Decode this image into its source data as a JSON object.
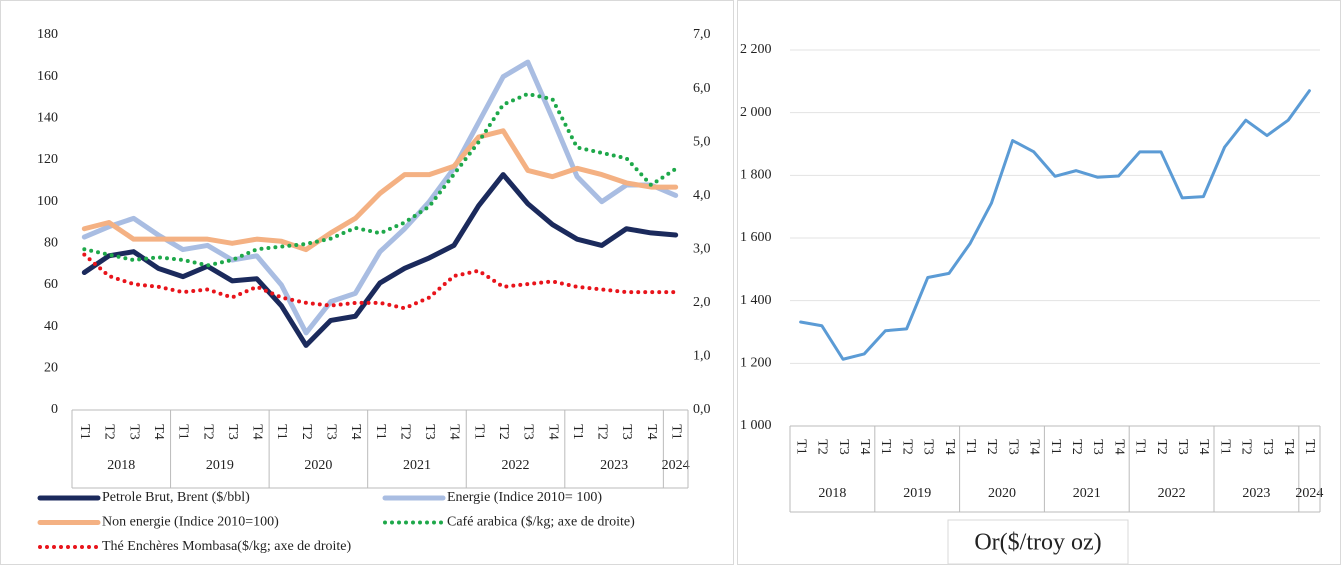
{
  "chart_data": [
    {
      "type": "line",
      "categories": [
        "T1",
        "T2",
        "T3",
        "T4",
        "T1",
        "T2",
        "T3",
        "T4",
        "T1",
        "T2",
        "T3",
        "T4",
        "T1",
        "T2",
        "T3",
        "T4",
        "T1",
        "T2",
        "T3",
        "T4",
        "T1",
        "T2",
        "T3",
        "T4",
        "T1"
      ],
      "groups": [
        "2018",
        null,
        null,
        null,
        "2019",
        null,
        null,
        null,
        "2020",
        null,
        null,
        null,
        "2021",
        null,
        null,
        null,
        "2022",
        null,
        null,
        null,
        "2023",
        null,
        null,
        null,
        "2024"
      ],
      "ylim": [
        0,
        180
      ],
      "yticks": [
        0,
        20,
        40,
        60,
        80,
        100,
        120,
        140,
        160,
        180
      ],
      "y2lim": [
        0,
        7
      ],
      "y2ticks": [
        {
          "value": 0,
          "label": "0,0"
        },
        {
          "value": 1,
          "label": "1,0"
        },
        {
          "value": 2,
          "label": "2,0"
        },
        {
          "value": 3,
          "label": "3,0"
        },
        {
          "value": 4,
          "label": "4,0"
        },
        {
          "value": 5,
          "label": "5,0"
        },
        {
          "value": 6,
          "label": "6,0"
        },
        {
          "value": 7,
          "label": "7,0"
        }
      ],
      "grid": false,
      "legend": "bottom",
      "series": [
        {
          "name": "Petrole Brut, Brent ($/bbl)",
          "color": "#1b2a5c",
          "style": "solid",
          "values": [
            66,
            74,
            76,
            68,
            64,
            69,
            62,
            63,
            50,
            31,
            43,
            45,
            61,
            68,
            73,
            79,
            98,
            113,
            99,
            89,
            82,
            79,
            87,
            85,
            84
          ]
        },
        {
          "name": "Energie (Indice 2010= 100)",
          "color": "#a9bde2",
          "style": "solid",
          "values": [
            83,
            88,
            92,
            84,
            77,
            79,
            72,
            74,
            60,
            37,
            52,
            56,
            76,
            87,
            100,
            116,
            138,
            160,
            167,
            140,
            112,
            100,
            108,
            108,
            103
          ]
        },
        {
          "name": "Non energie (Indice 2010=100)",
          "color": "#f4b183",
          "style": "solid",
          "values": [
            87,
            90,
            82,
            82,
            82,
            82,
            80,
            82,
            81,
            77,
            85,
            92,
            104,
            113,
            113,
            117,
            131,
            134,
            115,
            112,
            116,
            113,
            109,
            107,
            107
          ]
        },
        {
          "name": "Café arabica ($/kg; axe de droite)",
          "color": "#1ea84a",
          "style": "dotted",
          "axis": "y2",
          "values": [
            3.0,
            2.9,
            2.8,
            2.85,
            2.8,
            2.7,
            2.8,
            3.0,
            3.05,
            3.1,
            3.2,
            3.4,
            3.3,
            3.5,
            3.8,
            4.4,
            5.0,
            5.7,
            5.9,
            5.8,
            4.9,
            4.8,
            4.7,
            4.2,
            4.5
          ]
        },
        {
          "name": "Thé Enchères Mombasa($/kg; axe de droite)",
          "color": "#e8141b",
          "style": "dotted",
          "axis": "y2",
          "values": [
            2.9,
            2.5,
            2.35,
            2.3,
            2.2,
            2.25,
            2.1,
            2.3,
            2.1,
            2.0,
            1.95,
            2.0,
            2.0,
            1.9,
            2.1,
            2.5,
            2.6,
            2.3,
            2.35,
            2.4,
            2.3,
            2.25,
            2.2,
            2.2,
            2.2
          ]
        }
      ]
    },
    {
      "type": "line",
      "title": "Or($/troy oz)",
      "categories": [
        "T1",
        "T2",
        "T3",
        "T4",
        "T1",
        "T2",
        "T3",
        "T4",
        "T1",
        "T2",
        "T3",
        "T4",
        "T1",
        "T2",
        "T3",
        "T4",
        "T1",
        "T2",
        "T3",
        "T4",
        "T1",
        "T2",
        "T3",
        "T4",
        "T1"
      ],
      "groups": [
        "2018",
        null,
        null,
        null,
        "2019",
        null,
        null,
        null,
        "2020",
        null,
        null,
        null,
        "2021",
        null,
        null,
        null,
        "2022",
        null,
        null,
        null,
        "2023",
        null,
        null,
        null,
        "2024"
      ],
      "ylim": [
        1000,
        2200
      ],
      "yticks": [
        {
          "value": 1000,
          "label": "1 000"
        },
        {
          "value": 1200,
          "label": "1 200"
        },
        {
          "value": 1400,
          "label": "1 400"
        },
        {
          "value": 1600,
          "label": "1 600"
        },
        {
          "value": 1800,
          "label": "1 800"
        },
        {
          "value": 2000,
          "label": "2 000"
        },
        {
          "value": 2200,
          "label": "2 200"
        }
      ],
      "grid": true,
      "series": [
        {
          "name": "Or",
          "color": "#5b9bd5",
          "style": "solid",
          "values": [
            1332,
            1320,
            1213,
            1230,
            1304,
            1310,
            1474,
            1487,
            1583,
            1711,
            1911,
            1875,
            1797,
            1815,
            1794,
            1798,
            1875,
            1875,
            1728,
            1732,
            1890,
            1976,
            1927,
            1976,
            2070
          ]
        }
      ]
    }
  ]
}
